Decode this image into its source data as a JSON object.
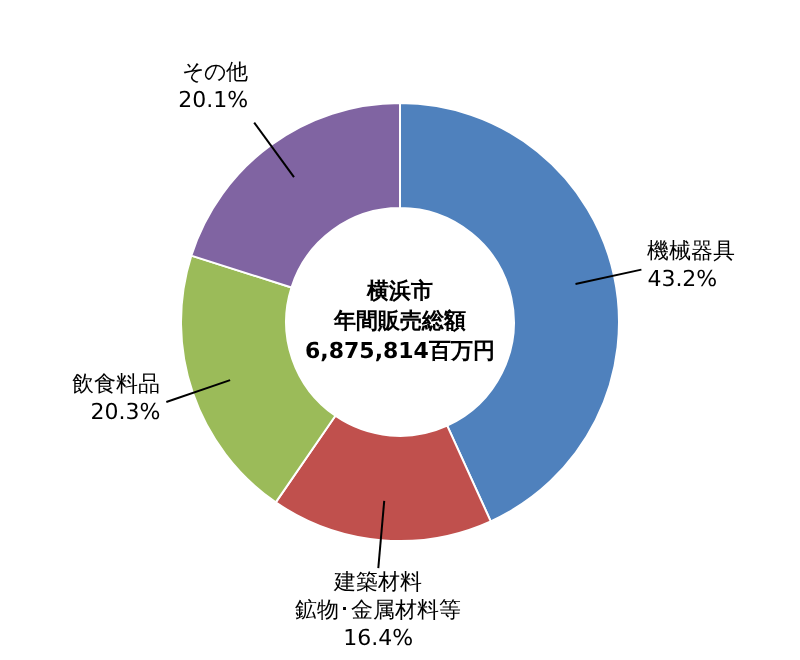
{
  "chart_data": {
    "type": "donut",
    "title": "横浜市年間販売総額6,875,814百万円",
    "categories": [
      "機械器具",
      "建築材料鉱物･金属材料等",
      "飲食料品",
      "その他"
    ],
    "values": [
      43.2,
      16.4,
      20.3,
      20.1
    ],
    "value_labels": [
      "43.2%",
      "16.4%",
      "20.3%",
      "20.1%"
    ],
    "colors": [
      "#4f81bd",
      "#c0504d",
      "#9bbb59",
      "#8064a2"
    ],
    "legend": false
  }
}
